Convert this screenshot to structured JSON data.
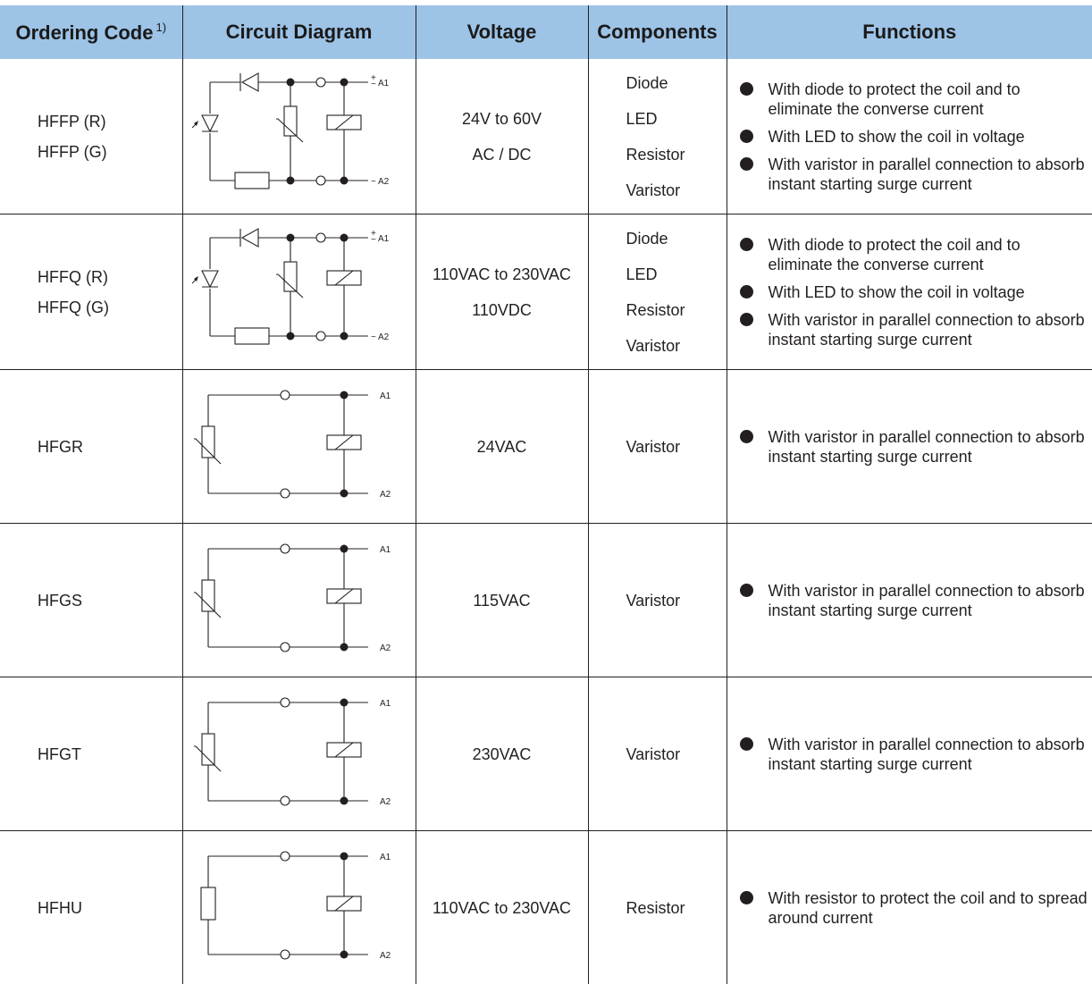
{
  "header": {
    "ordering_code": "Ordering Code",
    "footnote": "1)",
    "circuit_diagram": "Circuit Diagram",
    "voltage": "Voltage",
    "components": "Components",
    "functions": "Functions"
  },
  "pins": {
    "a1": "A1",
    "a2": "A2",
    "plus": "+",
    "tilde": "~"
  },
  "rows": [
    {
      "codes": [
        "HFFP (R)",
        "HFFP (G)"
      ],
      "voltage": [
        "24V to 60V",
        "AC / DC"
      ],
      "components": [
        "Diode",
        "LED",
        "Resistor",
        "Varistor"
      ],
      "functions": [
        "With diode to protect the coil and to eliminate the converse current",
        "With LED to show the coil in voltage",
        "With varistor in parallel connection to absorb instant starting surge current"
      ]
    },
    {
      "codes": [
        "HFFQ (R)",
        "HFFQ (G)"
      ],
      "voltage": [
        "110VAC to 230VAC",
        "110VDC"
      ],
      "components": [
        "Diode",
        "LED",
        "Resistor",
        "Varistor"
      ],
      "functions": [
        "With diode to protect the coil and to eliminate the converse current",
        "With LED to show the coil in voltage",
        "With varistor in parallel connection to absorb instant starting surge current"
      ]
    },
    {
      "codes": [
        "HFGR"
      ],
      "voltage": [
        "24VAC"
      ],
      "components": [
        "Varistor"
      ],
      "functions": [
        "With varistor in parallel connection to absorb instant starting surge current"
      ]
    },
    {
      "codes": [
        "HFGS"
      ],
      "voltage": [
        "115VAC"
      ],
      "components": [
        "Varistor"
      ],
      "functions": [
        "With varistor in parallel connection to absorb instant starting surge current"
      ]
    },
    {
      "codes": [
        "HFGT"
      ],
      "voltage": [
        "230VAC"
      ],
      "components": [
        "Varistor"
      ],
      "functions": [
        "With varistor in parallel connection to absorb instant starting surge current"
      ]
    },
    {
      "codes": [
        "HFHU"
      ],
      "voltage": [
        "110VAC to 230VAC"
      ],
      "components": [
        "Resistor"
      ],
      "functions": [
        "With resistor to protect the coil and to spread around current"
      ]
    }
  ]
}
